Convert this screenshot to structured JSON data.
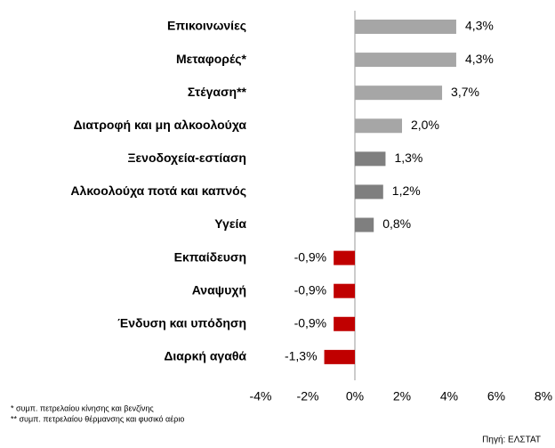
{
  "chart_data": {
    "type": "barh",
    "categories": [
      "Επικοινωνίες",
      "Μεταφορές*",
      "Στέγαση**",
      "Διατροφή και μη αλκοολούχα",
      "Ξενοδοχεία-εστίαση",
      "Αλκοολούχα ποτά και καπνός",
      "Υγεία",
      "Εκπαίδευση",
      "Αναψυχή",
      "Ένδυση και υπόδηση",
      "Διαρκή αγαθά"
    ],
    "values": [
      4.3,
      4.3,
      3.7,
      2.0,
      1.3,
      1.2,
      0.8,
      -0.9,
      -0.9,
      -0.9,
      -1.3
    ],
    "value_labels": [
      "4,3%",
      "4,3%",
      "3,7%",
      "2,0%",
      "1,3%",
      "1,2%",
      "0,8%",
      "-0,9%",
      "-0,9%",
      "-0,9%",
      "-1,3%"
    ],
    "colors": [
      "#a6a6a6",
      "#a6a6a6",
      "#a6a6a6",
      "#a6a6a6",
      "#7f7f7f",
      "#7f7f7f",
      "#7f7f7f",
      "#c00000",
      "#c00000",
      "#c00000",
      "#c00000"
    ],
    "xlim": [
      -4,
      8
    ],
    "xticks": [
      {
        "value": -4,
        "label": "-4%"
      },
      {
        "value": -2,
        "label": "-2%"
      },
      {
        "value": 0,
        "label": "0%"
      },
      {
        "value": 2,
        "label": "2%"
      },
      {
        "value": 4,
        "label": "4%"
      },
      {
        "value": 6,
        "label": "6%"
      },
      {
        "value": 8,
        "label": "8%"
      }
    ],
    "notes": [
      "* συμπ. πετρελαίου κίνησης και βενζίνης",
      "** συμπ. πετρελαίου θέρμανσης και φυσικό αέριο"
    ],
    "source": "Πηγή: ΕΛΣΤΑΤ"
  }
}
